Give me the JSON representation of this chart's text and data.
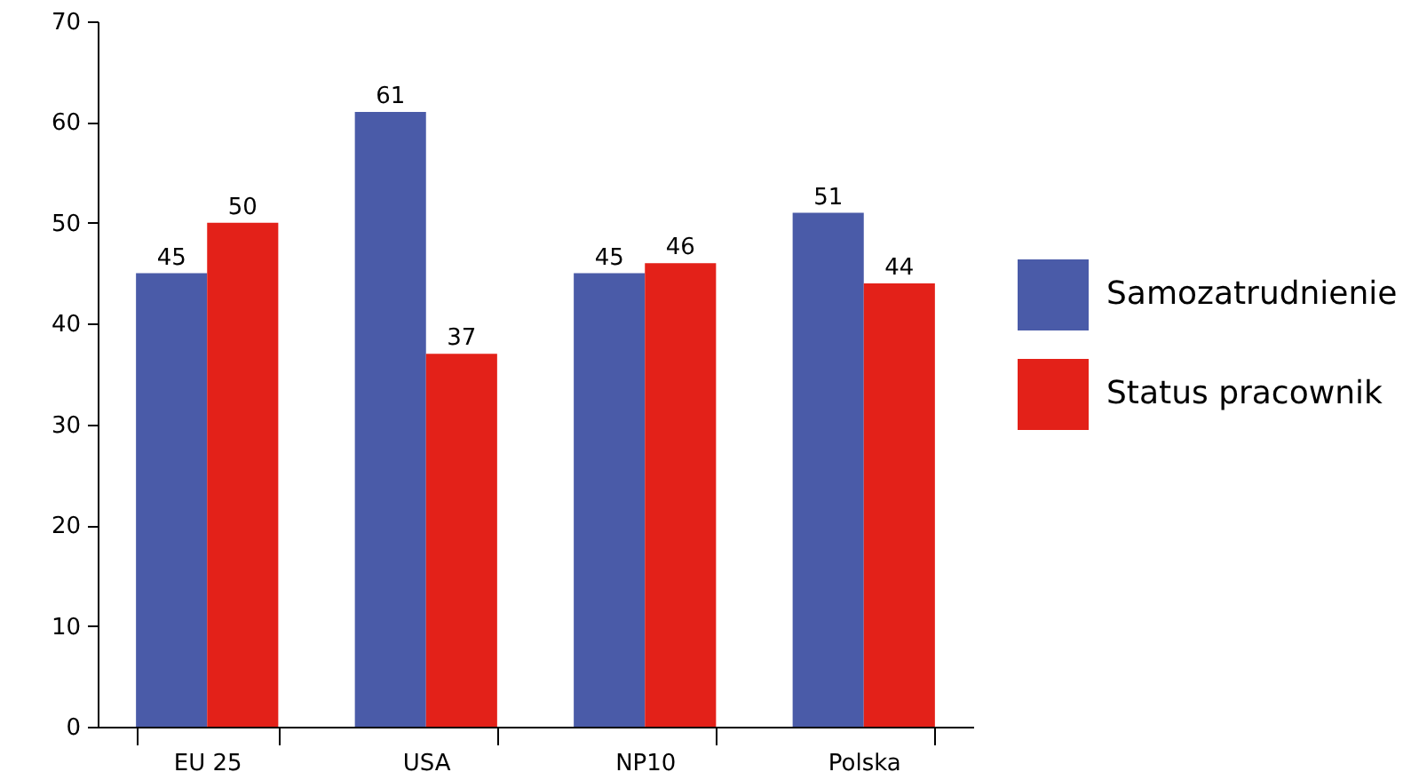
{
  "chart_data": {
    "type": "bar",
    "categories": [
      "EU 25",
      "USA",
      "NP10",
      "Polska"
    ],
    "series": [
      {
        "name": "Samozatrudnienie",
        "color": "#4a5ba8",
        "values": [
          45,
          61,
          45,
          51
        ]
      },
      {
        "name": "Status pracownik",
        "color": "#e32119",
        "values": [
          50,
          37,
          46,
          44
        ]
      }
    ],
    "ylim": [
      0,
      70
    ],
    "yticks": [
      0,
      10,
      20,
      30,
      40,
      50,
      60,
      70
    ],
    "grid": false,
    "legend": "right",
    "data_labels": true
  }
}
